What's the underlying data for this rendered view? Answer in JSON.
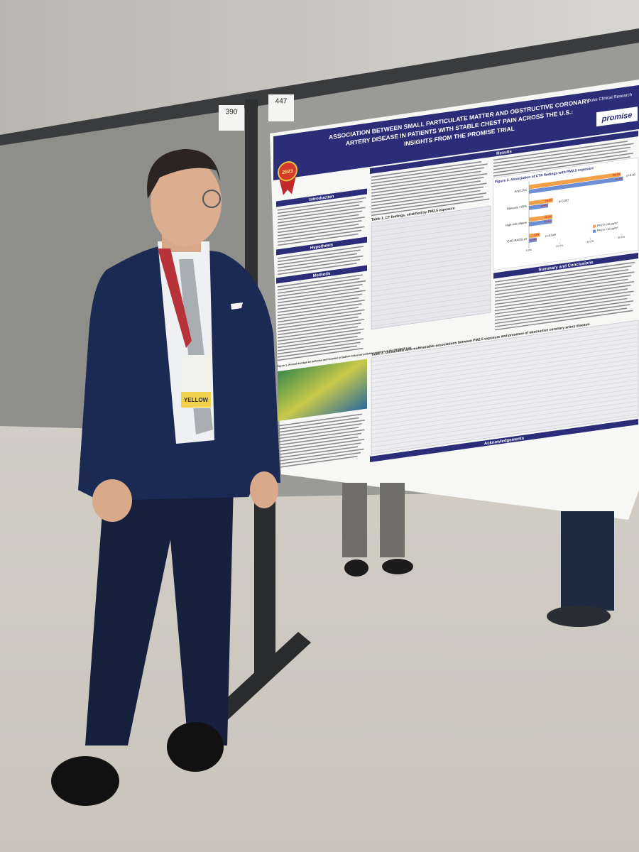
{
  "poster": {
    "title": [
      "ASSOCIATION BETWEEN SMALL PARTICULATE MATTER AND OBSTRUCTIVE CORONARY",
      "ARTERY DISEASE IN PATIENTS WITH STABLE CHEST PAIN ACROSS THE U.S.:",
      "INSIGHTS FROM THE PROMISE TRIAL"
    ],
    "institution": "Duke Clinical Research",
    "logo": "promise",
    "award": "2023",
    "sections": [
      "Introduction",
      "Hypothesis",
      "Methods",
      "Results",
      "Summary and Conclusions",
      "Acknowledgements"
    ],
    "table1_title": "Table 1. CT findings, stratified by PM2.5 exposure",
    "table2_title": "Table 2. Univariable and multivariable associations between PM2.5 exposure and presence of obstructive coronary artery disease.",
    "figure1_title": "Figure 1. Annual average air pollution and location of patient-linked air pollution monitors in the PROMISE trial"
  },
  "booths": [
    "390",
    "447"
  ],
  "badge": "YELLOW",
  "chart_data": {
    "type": "bar",
    "orientation": "horizontal",
    "title": "Figure 2. Association of CTA findings with PM2.5 exposure",
    "categories": [
      "Any CAC",
      "Stenosis >50%",
      "High-risk plaque",
      "CAD-RADS ≥4"
    ],
    "series": [
      {
        "name": "PM2.5 ≥10 µg/m³",
        "color": "#f2a04a",
        "values": [
          59.7,
          15.6,
          15.2,
          7.1
        ],
        "value_labels": [
          "59.7%",
          "15.6%",
          "15.2%",
          "7.1%"
        ]
      },
      {
        "name": "PM2.5 <10 µg/m³",
        "color": "#6d8fd6",
        "values": [
          61.2,
          12.5,
          15.0,
          5.1
        ],
        "value_labels": [
          "61.2%",
          "12.5%",
          "15.0%",
          "5.1%"
        ]
      }
    ],
    "p_values": [
      "p=0.39",
      "p=0.007",
      null,
      "p=0.049"
    ],
    "xlim": [
      0,
      60
    ],
    "xticks": [
      {
        "value": 0,
        "label": "0.0%"
      },
      {
        "value": 20,
        "label": "20.0%"
      },
      {
        "value": 40,
        "label": "40.0%"
      },
      {
        "value": 60,
        "label": "60.0%"
      }
    ],
    "legend": "lower right"
  }
}
